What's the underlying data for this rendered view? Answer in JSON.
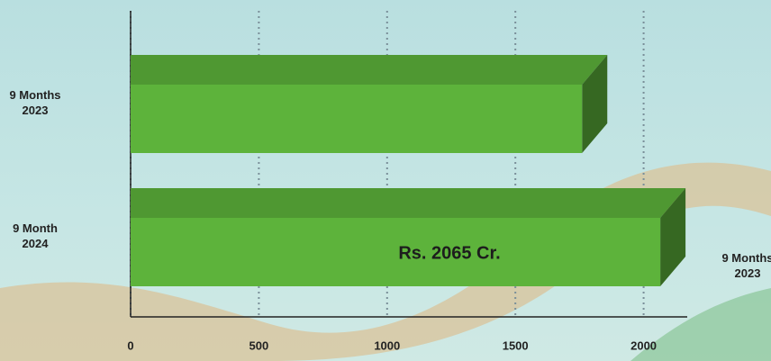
{
  "chart_data": {
    "type": "bar3d",
    "orientation": "horizontal",
    "categories": [
      "9 Months 2023",
      "9 Month 2024"
    ],
    "values": [
      1760,
      2065
    ],
    "value_labels": [
      null,
      "Rs. 2065 Cr."
    ],
    "color": "#5db33b",
    "xlim": [
      0,
      2170
    ],
    "xticks": [
      0,
      500,
      1000,
      1500,
      2000
    ],
    "grid": true,
    "annotation": "9 Months 2023"
  }
}
